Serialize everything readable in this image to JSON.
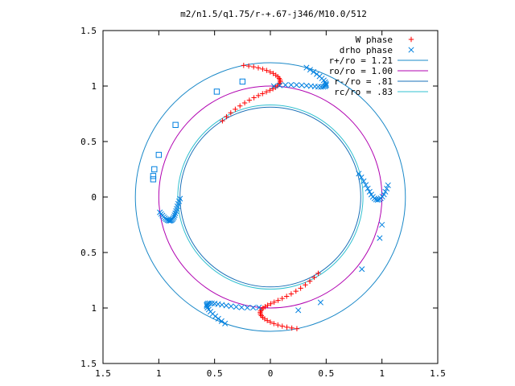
{
  "chart_data": {
    "type": "scatter",
    "title": "m2/n1.5/q1.75/r-+.67-j346/M10.0/512",
    "xlim": [
      -1.5,
      1.5
    ],
    "ylim": [
      -1.5,
      1.5
    ],
    "x_ticks": [
      -1.5,
      -1,
      -0.5,
      0,
      0.5,
      1,
      1.5
    ],
    "y_ticks": [
      -1.5,
      -1,
      -0.5,
      0,
      0.5,
      1,
      1.5
    ],
    "x_tick_labels": [
      "1.5",
      "1",
      "0.5",
      "0",
      "0.5",
      "1",
      "1.5"
    ],
    "y_tick_labels": [
      "1.5",
      "1",
      "0.5",
      "0",
      "0.5",
      "1",
      "1.5"
    ],
    "grid": false,
    "legend_position": "top-right",
    "legend": [
      {
        "label": "W phase",
        "kind": "point",
        "marker": "plus",
        "color": "#ff0000"
      },
      {
        "label": "drho phase",
        "kind": "point",
        "marker": "cross",
        "color": "#0080e0"
      },
      {
        "label": "r+/ro = 1.21",
        "kind": "circle",
        "radius": 1.21,
        "color": "#1a88c8"
      },
      {
        "label": "ro/ro = 1.00",
        "kind": "circle",
        "radius": 1.0,
        "color": "#b000b0"
      },
      {
        "label": "r-/ro = .81",
        "kind": "circle",
        "radius": 0.81,
        "color": "#1a70b8"
      },
      {
        "label": "rc/ro = .83",
        "kind": "circle",
        "radius": 0.83,
        "color": "#30c0d0"
      }
    ],
    "series": [
      {
        "name": "W phase",
        "marker": "plus",
        "color": "#ff0000",
        "arms": [
          {
            "theta": 1.95,
            "r0": 0.81,
            "r1": 1.21,
            "wind": -0.9,
            "n": 30
          },
          {
            "theta": 5.09,
            "r0": 0.81,
            "r1": 1.21,
            "wind": -0.9,
            "n": 30
          }
        ]
      },
      {
        "name": "drho phase",
        "marker": "cross",
        "color": "#0080e0",
        "arms": [
          {
            "theta": 1.42,
            "r0": 1.0,
            "r1": 1.21,
            "wind": -0.6,
            "n": 24
          },
          {
            "theta": 3.22,
            "r0": 0.81,
            "r1": 1.0,
            "wind": 0.3,
            "n": 22
          },
          {
            "theta": 4.49,
            "r0": 1.0,
            "r1": 1.21,
            "wind": -0.6,
            "n": 24
          },
          {
            "theta": 0.18,
            "r0": 0.82,
            "r1": 1.06,
            "wind": -0.4,
            "n": 18
          }
        ],
        "outliers": [
          [
            0.82,
            -0.65
          ],
          [
            0.98,
            -0.37
          ],
          [
            1.0,
            -0.25
          ],
          [
            0.45,
            -0.95
          ],
          [
            0.25,
            -1.02
          ]
        ]
      },
      {
        "name": "squares",
        "marker": "square",
        "color": "#0080e0",
        "points": [
          [
            -0.25,
            1.04
          ],
          [
            -0.48,
            0.95
          ],
          [
            -0.85,
            0.65
          ],
          [
            -1.0,
            0.38
          ],
          [
            -1.04,
            0.25
          ],
          [
            -1.05,
            0.19
          ],
          [
            -1.05,
            0.16
          ]
        ]
      }
    ]
  }
}
